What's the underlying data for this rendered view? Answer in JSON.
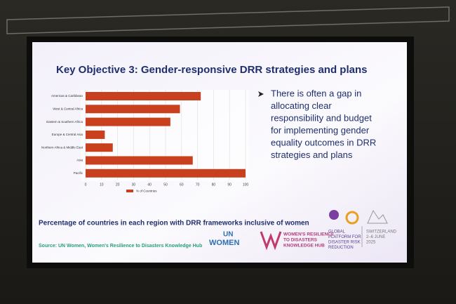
{
  "slide": {
    "title": "Key Objective 3: Gender-responsive DRR strategies and plans",
    "bullet_lines": [
      "There is often a gap in",
      "allocating clear",
      "responsibility and budget",
      "for implementing gender",
      "equality outcomes in DRR",
      "strategies and plans"
    ],
    "caption": "Percentage of countries in each region with DRR frameworks inclusive of women",
    "source": "Source: UN Women, Women's Resilience to Disasters Knowledge Hub",
    "logo_un": "UN",
    "logo_women": "WOMEN",
    "logo_hub_lines": [
      "WOMEN'S RESILIENCE",
      "TO DISASTERS",
      "KNOWLEDGE HUB"
    ],
    "logo_gp_lines": [
      "GLOBAL",
      "PLATFORM FOR",
      "DISASTER RISK",
      "REDUCTION"
    ],
    "logo_event_lines": [
      "SWITZERLAND",
      "2–6 JUNE",
      "2025"
    ]
  },
  "chart_data": {
    "type": "barh",
    "categories": [
      "Americas & Caribbean",
      "West & Central Africa",
      "Eastern & Southern Africa",
      "Europe & Central Asia",
      "Northern Africa & Middle East",
      "Asia",
      "Pacific"
    ],
    "series": [
      {
        "name": "% of Countries",
        "color": "#c8401e",
        "values": [
          72,
          59,
          53,
          12,
          17,
          67,
          100
        ]
      }
    ],
    "xlim": [
      0,
      100
    ],
    "xticks": [
      0,
      10,
      20,
      30,
      40,
      50,
      60,
      70,
      80,
      90,
      100
    ],
    "grid": true,
    "legend": "bottom"
  }
}
